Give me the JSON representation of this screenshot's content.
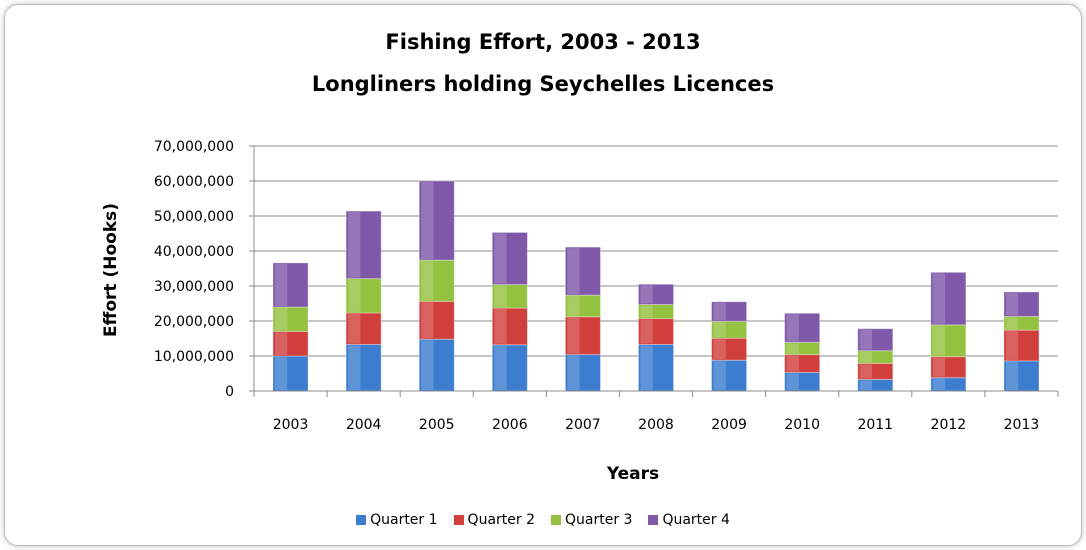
{
  "chart_data": {
    "type": "bar",
    "stacked": true,
    "title": "Fishing Effort, 2003 - 2013",
    "subtitle": "Longliners holding Seychelles Licences",
    "xlabel": "Years",
    "ylabel": "Effort (Hooks)",
    "ylim": [
      0,
      70000000
    ],
    "yticks": [
      "0",
      "10,000,000",
      "20,000,000",
      "30,000,000",
      "40,000,000",
      "50,000,000",
      "60,000,000",
      "70,000,000"
    ],
    "grid": true,
    "legend_position": "bottom",
    "categories": [
      "2003",
      "2004",
      "2005",
      "2006",
      "2007",
      "2008",
      "2009",
      "2010",
      "2011",
      "2012",
      "2013"
    ],
    "series": [
      {
        "name": "Quarter 1",
        "color": "#3c7dd0",
        "values": [
          10000000,
          13300000,
          14800000,
          13200000,
          10400000,
          13300000,
          8800000,
          5300000,
          3300000,
          3800000,
          8600000
        ]
      },
      {
        "name": "Quarter 2",
        "color": "#d13f3c",
        "values": [
          7000000,
          9000000,
          10800000,
          10500000,
          10800000,
          7400000,
          6300000,
          5100000,
          4600000,
          6000000,
          8800000
        ]
      },
      {
        "name": "Quarter 3",
        "color": "#93c140",
        "values": [
          7000000,
          9800000,
          11800000,
          6700000,
          6200000,
          4000000,
          4800000,
          3500000,
          3600000,
          9100000,
          3900000
        ]
      },
      {
        "name": "Quarter 4",
        "color": "#7f58a9",
        "values": [
          12600000,
          19300000,
          22600000,
          14900000,
          13700000,
          5800000,
          5600000,
          8300000,
          6300000,
          15000000,
          7000000
        ]
      }
    ]
  }
}
